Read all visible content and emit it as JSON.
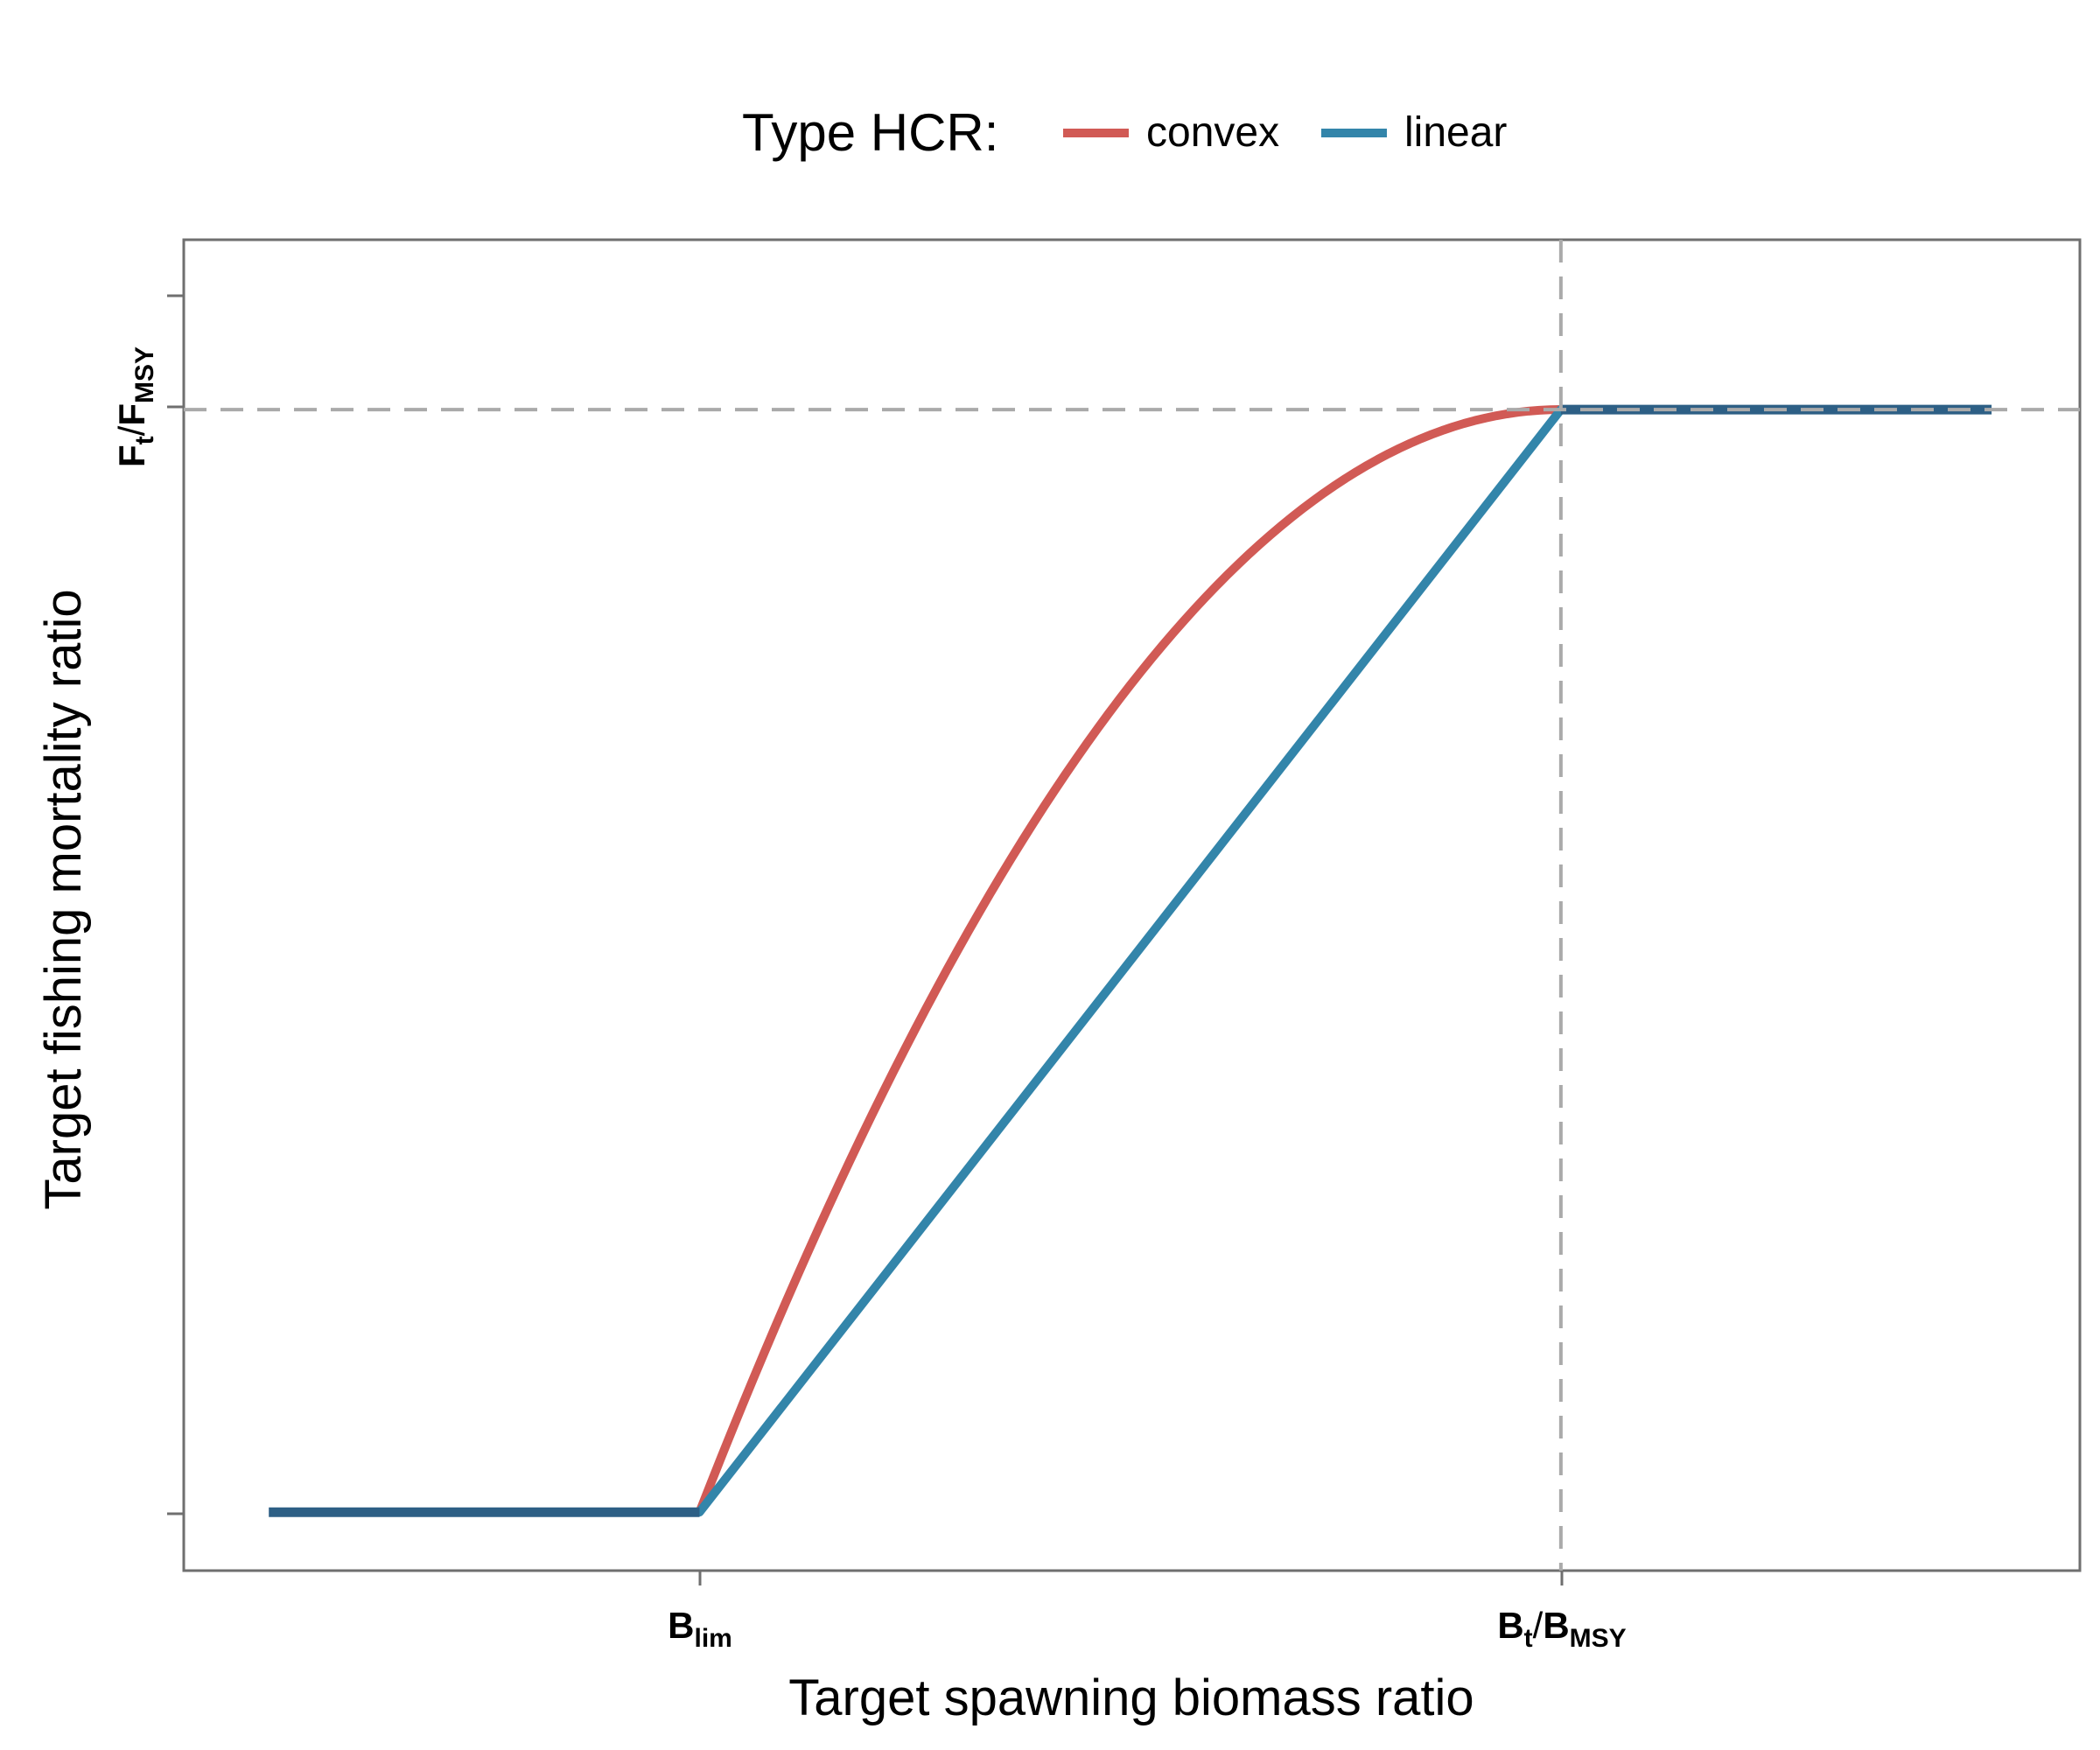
{
  "chart_data": {
    "type": "line",
    "legend": {
      "title": "Type HCR:",
      "placement": "top",
      "entries": [
        {
          "label": "convex",
          "color": "#d15a55"
        },
        {
          "label": "linear",
          "color": "#3385aa"
        }
      ]
    },
    "overlap_color": "#2d5f85",
    "xlabel": "Target spawning biomass ratio",
    "ylabel": "Target fishing mortality ratio",
    "x_ticks": [
      {
        "main": "B",
        "sub": "lim",
        "value": 0.2
      },
      {
        "main": "B",
        "main2": "t",
        "slash": "/",
        "main3": "B",
        "sub": "MSY",
        "value": 1.0
      }
    ],
    "y_ticks": [
      {
        "main": "F",
        "sub1": "t",
        "slash": "/",
        "main2": "F",
        "sub": "MSY",
        "value": 1.0
      }
    ],
    "xlim": [
      -0.279,
      1.482
    ],
    "ylim": [
      -0.053,
      1.154
    ],
    "grid": false,
    "reference_lines": {
      "x": 1.0,
      "y": 1.0,
      "style": "dashed",
      "color": "#aaaaaa"
    },
    "series": [
      {
        "name": "convex",
        "x": [
          -0.2,
          0.2,
          1.0,
          1.4
        ],
        "shape": "flat-then-concave-rise-then-flat",
        "y_at_x": [
          0,
          0,
          1,
          1
        ]
      },
      {
        "name": "linear",
        "x": [
          -0.2,
          0.2,
          1.0,
          1.4
        ],
        "y": [
          0,
          0,
          1,
          1
        ]
      }
    ]
  }
}
